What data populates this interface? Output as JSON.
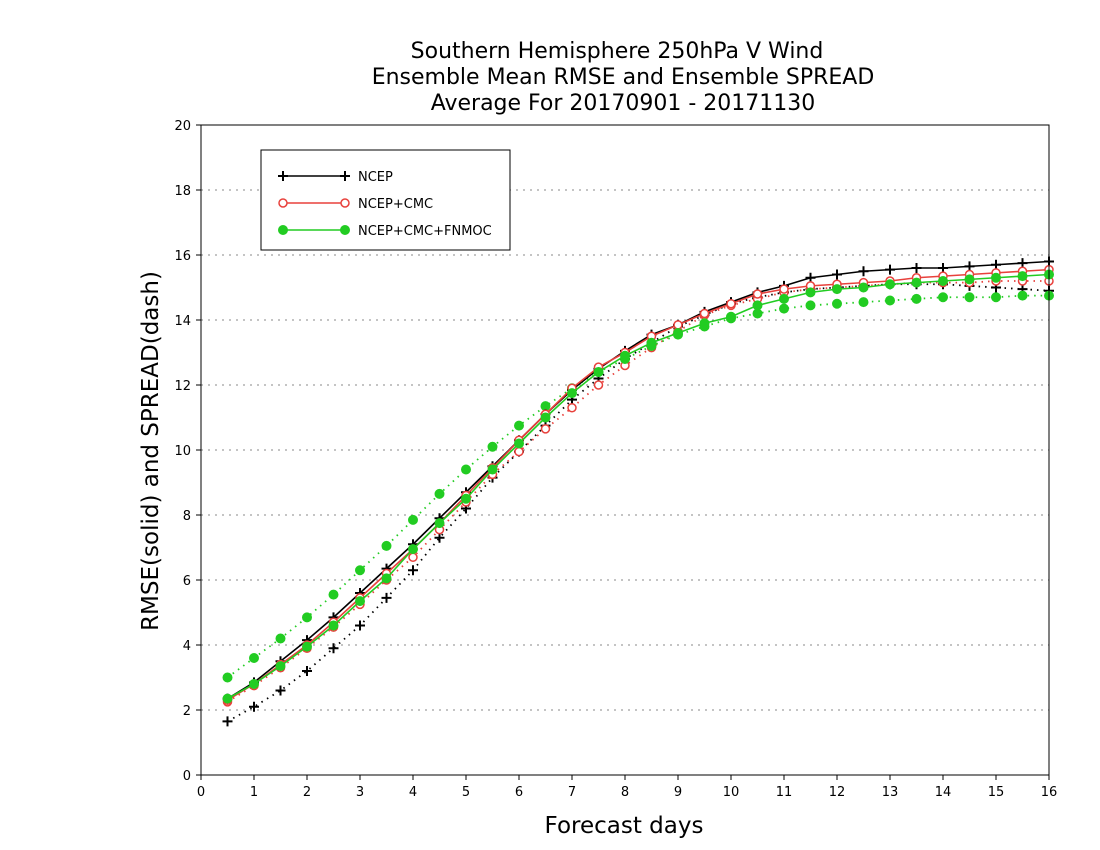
{
  "chart_data": {
    "type": "line",
    "title_lines": [
      "Southern Hemisphere 250hPa V Wind",
      "Ensemble Mean RMSE and Ensemble SPREAD",
      "Average For 20170901 - 20171130"
    ],
    "xlabel": "Forecast days",
    "ylabel": "RMSE(solid) and SPREAD(dash)",
    "xlim": [
      0,
      16
    ],
    "ylim": [
      0,
      20
    ],
    "xticks": [
      0,
      1,
      2,
      3,
      4,
      5,
      6,
      7,
      8,
      9,
      10,
      11,
      12,
      13,
      14,
      15,
      16
    ],
    "yticks": [
      0,
      2,
      4,
      6,
      8,
      10,
      12,
      14,
      16,
      18,
      20
    ],
    "grid": "horizontal dotted",
    "legend_position": "top-left",
    "x": [
      0.5,
      1,
      1.5,
      2,
      2.5,
      3,
      3.5,
      4,
      4.5,
      5,
      5.5,
      6,
      6.5,
      7,
      7.5,
      8,
      8.5,
      9,
      9.5,
      10,
      10.5,
      11,
      11.5,
      12,
      12.5,
      13,
      13.5,
      14,
      14.5,
      15,
      15.5,
      16
    ],
    "series": [
      {
        "name": "NCEP",
        "color": "#000000",
        "marker": "plus",
        "rmse": [
          2.35,
          2.85,
          3.5,
          4.15,
          4.85,
          5.6,
          6.35,
          7.1,
          7.9,
          8.7,
          9.5,
          10.3,
          11.1,
          11.85,
          12.5,
          13.05,
          13.55,
          13.85,
          14.25,
          14.55,
          14.85,
          15.05,
          15.3,
          15.4,
          15.5,
          15.55,
          15.6,
          15.6,
          15.65,
          15.7,
          15.75,
          15.8
        ],
        "spread": [
          1.65,
          2.1,
          2.6,
          3.2,
          3.9,
          4.6,
          5.45,
          6.3,
          7.3,
          8.2,
          9.15,
          9.95,
          10.75,
          11.55,
          12.2,
          12.8,
          13.3,
          13.8,
          14.15,
          14.5,
          14.7,
          14.85,
          14.95,
          15.0,
          15.05,
          15.1,
          15.1,
          15.1,
          15.05,
          15.0,
          14.95,
          14.9
        ]
      },
      {
        "name": "NCEP+CMC",
        "color": "#e8413c",
        "marker": "circle-open",
        "rmse": [
          2.3,
          2.8,
          3.4,
          4.0,
          4.7,
          5.45,
          6.2,
          6.95,
          7.75,
          8.6,
          9.45,
          10.3,
          11.1,
          11.9,
          12.55,
          13.0,
          13.5,
          13.85,
          14.2,
          14.5,
          14.8,
          14.95,
          15.05,
          15.1,
          15.15,
          15.2,
          15.3,
          15.35,
          15.4,
          15.45,
          15.5,
          15.55
        ],
        "spread": [
          2.25,
          2.75,
          3.3,
          3.9,
          4.55,
          5.25,
          6.0,
          6.7,
          7.55,
          8.4,
          9.25,
          9.95,
          10.65,
          11.3,
          12.0,
          12.6,
          13.15,
          13.65,
          14.15,
          14.45,
          14.65,
          14.85,
          14.95,
          15.0,
          15.05,
          15.1,
          15.15,
          15.15,
          15.15,
          15.2,
          15.2,
          15.2
        ]
      },
      {
        "name": "NCEP+CMC+FNMOC",
        "color": "#22cc22",
        "marker": "circle-filled",
        "rmse": [
          2.35,
          2.8,
          3.35,
          3.95,
          4.6,
          5.35,
          6.05,
          6.95,
          7.75,
          8.5,
          9.4,
          10.2,
          11.0,
          11.75,
          12.4,
          12.9,
          13.3,
          13.6,
          13.9,
          14.1,
          14.45,
          14.65,
          14.85,
          14.95,
          15.0,
          15.1,
          15.15,
          15.2,
          15.25,
          15.3,
          15.35,
          15.4
        ],
        "spread": [
          3.0,
          3.6,
          4.2,
          4.85,
          5.55,
          6.3,
          7.05,
          7.85,
          8.65,
          9.4,
          10.1,
          10.75,
          11.35,
          11.9,
          12.4,
          12.8,
          13.2,
          13.55,
          13.8,
          14.05,
          14.2,
          14.35,
          14.45,
          14.5,
          14.55,
          14.6,
          14.65,
          14.7,
          14.7,
          14.7,
          14.75,
          14.75
        ]
      }
    ]
  }
}
